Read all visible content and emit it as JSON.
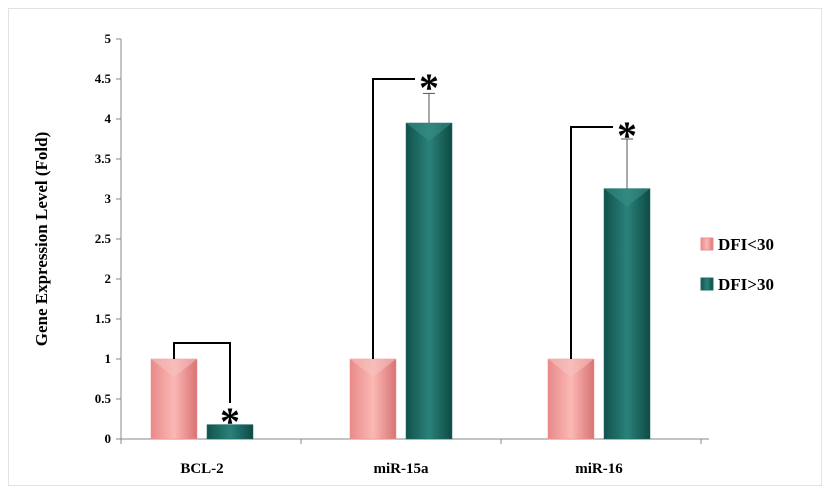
{
  "chart_data": {
    "type": "bar",
    "title": "",
    "ylabel": "Gene Expression  Level (Fold)",
    "xlabel": "",
    "ylim": [
      0,
      5
    ],
    "yticks": [
      0,
      0.5,
      1,
      1.5,
      2,
      2.5,
      3,
      3.5,
      4,
      4.5,
      5
    ],
    "ytick_labels": [
      "0",
      "0.5",
      "1",
      "1.5",
      "2",
      "2.5",
      "3",
      "3.5",
      "4",
      "4.5",
      "5"
    ],
    "categories": [
      "BCL-2",
      "miR-15a",
      "miR-16"
    ],
    "series": [
      {
        "name": "DFI<30",
        "values": [
          1,
          1,
          1
        ],
        "errors": [
          0,
          0,
          0
        ],
        "color": "#f08c8c"
      },
      {
        "name": "DFI>30",
        "values": [
          0.18,
          3.95,
          3.13
        ],
        "errors": [
          0,
          0.37,
          0.62
        ],
        "color": "#1f6b64"
      }
    ],
    "significance_marker": "*",
    "legend_position": "right",
    "grid": false
  }
}
